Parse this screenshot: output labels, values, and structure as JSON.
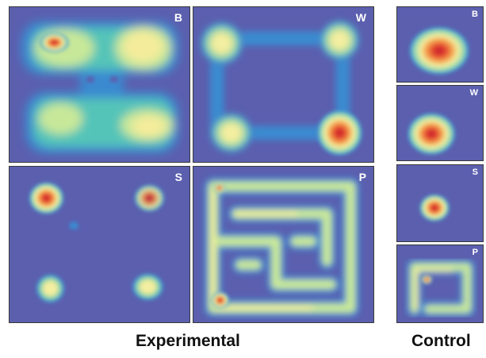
{
  "experimental": {
    "caption": "Experimental",
    "panels": [
      {
        "label": "B"
      },
      {
        "label": "W"
      },
      {
        "label": "S"
      },
      {
        "label": "P"
      }
    ]
  },
  "control": {
    "caption": "Control",
    "panels": [
      {
        "label": "B"
      },
      {
        "label": "W"
      },
      {
        "label": "S"
      },
      {
        "label": "P"
      }
    ]
  },
  "colors": {
    "background": "#5b5fae",
    "low": "#3b8ad0",
    "mid_low": "#55c4b8",
    "mid": "#c8e899",
    "high": "#f4ec9b",
    "peak_orange": "#ee6a3a",
    "peak_red": "#c01a2c"
  }
}
